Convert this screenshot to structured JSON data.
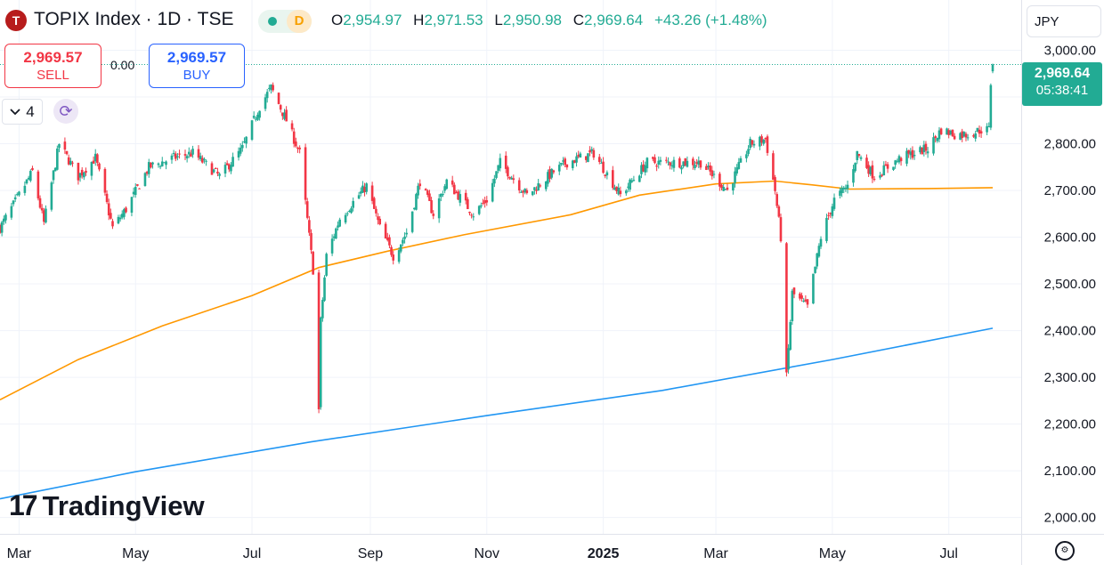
{
  "header": {
    "symbol_logo": "T",
    "title": "TOPIX Index · 1D · TSE",
    "status_badge": "D",
    "ohlc": {
      "open_label": "O",
      "open": "2,954.97",
      "high_label": "H",
      "high": "2,971.53",
      "low_label": "L",
      "low": "2,950.98",
      "close_label": "C",
      "close": "2,969.64",
      "change": "+43.26 (+1.48%)"
    }
  },
  "trade": {
    "sell_price": "2,969.57",
    "sell_label": "SELL",
    "spread": "0.00",
    "buy_price": "2,969.57",
    "buy_label": "BUY"
  },
  "indicators_toggle": {
    "count": "4",
    "chevron_icon": "chevron-down-icon"
  },
  "sync_icon": "refresh-icon",
  "currency": "JPY",
  "last_price": {
    "value": "2,969.64",
    "countdown": "05:38:41"
  },
  "watermark": {
    "logo_mark": "17",
    "wordmark": "TradingView"
  },
  "colors": {
    "up": "#22ab94",
    "down": "#f23645",
    "ma_orange": "#ff9800",
    "ma_blue": "#2196f3"
  },
  "chart_data": {
    "type": "candlestick",
    "ylim": [
      1965,
      3020
    ],
    "y_ticks": [
      2000,
      2100,
      2200,
      2300,
      2400,
      2500,
      2600,
      2700,
      2800,
      2900,
      3000
    ],
    "y_tick_labels": [
      "2,000.00",
      "2,100.00",
      "2,200.00",
      "2,300.00",
      "2,400.00",
      "2,500.00",
      "2,600.00",
      "2,700.00",
      "2,800.00",
      "2,900.00",
      "3,000.00"
    ],
    "x_tick_labels": [
      "Mar",
      "May",
      "Jul",
      "Sep",
      "Nov",
      "2025",
      "Mar",
      "May",
      "Jul"
    ],
    "x_tick_dates": [
      "2024-03-01",
      "2024-05-01",
      "2024-07-01",
      "2024-09-01",
      "2024-11-01",
      "2025-01-01",
      "2025-03-01",
      "2025-05-01",
      "2025-07-01"
    ],
    "date_range": [
      "2024-02-20",
      "2025-07-24"
    ],
    "last_close": 2969.64,
    "close_path": [
      [
        "2024-02-20",
        2620
      ],
      [
        "2024-03-01",
        2690
      ],
      [
        "2024-03-08",
        2740
      ],
      [
        "2024-03-14",
        2630
      ],
      [
        "2024-03-22",
        2800
      ],
      [
        "2024-04-01",
        2730
      ],
      [
        "2024-04-10",
        2770
      ],
      [
        "2024-04-19",
        2620
      ],
      [
        "2024-04-26",
        2660
      ],
      [
        "2024-05-08",
        2750
      ],
      [
        "2024-05-21",
        2770
      ],
      [
        "2024-05-31",
        2780
      ],
      [
        "2024-06-14",
        2730
      ],
      [
        "2024-06-26",
        2790
      ],
      [
        "2024-07-05",
        2880
      ],
      [
        "2024-07-11",
        2920
      ],
      [
        "2024-07-19",
        2850
      ],
      [
        "2024-07-26",
        2780
      ],
      [
        "2024-08-02",
        2530
      ],
      [
        "2024-08-05",
        2230
      ],
      [
        "2024-08-06",
        2420
      ],
      [
        "2024-08-09",
        2560
      ],
      [
        "2024-08-16",
        2640
      ],
      [
        "2024-08-30",
        2710
      ],
      [
        "2024-09-06",
        2620
      ],
      [
        "2024-09-13",
        2560
      ],
      [
        "2024-09-20",
        2610
      ],
      [
        "2024-09-27",
        2720
      ],
      [
        "2024-10-04",
        2650
      ],
      [
        "2024-10-11",
        2720
      ],
      [
        "2024-10-25",
        2650
      ],
      [
        "2024-11-01",
        2680
      ],
      [
        "2024-11-08",
        2760
      ],
      [
        "2024-11-22",
        2690
      ],
      [
        "2024-12-06",
        2740
      ],
      [
        "2024-12-13",
        2760
      ],
      [
        "2024-12-27",
        2780
      ],
      [
        "2025-01-10",
        2690
      ],
      [
        "2025-01-24",
        2760
      ],
      [
        "2025-02-07",
        2760
      ],
      [
        "2025-02-21",
        2760
      ],
      [
        "2025-03-07",
        2700
      ],
      [
        "2025-03-19",
        2800
      ],
      [
        "2025-03-27",
        2810
      ],
      [
        "2025-04-01",
        2700
      ],
      [
        "2025-04-04",
        2600
      ],
      [
        "2025-04-07",
        2300
      ],
      [
        "2025-04-10",
        2480
      ],
      [
        "2025-04-18",
        2450
      ],
      [
        "2025-04-25",
        2600
      ],
      [
        "2025-05-02",
        2680
      ],
      [
        "2025-05-09",
        2710
      ],
      [
        "2025-05-14",
        2780
      ],
      [
        "2025-05-23",
        2730
      ],
      [
        "2025-06-06",
        2770
      ],
      [
        "2025-06-20",
        2790
      ],
      [
        "2025-06-27",
        2830
      ],
      [
        "2025-07-04",
        2820
      ],
      [
        "2025-07-11",
        2820
      ],
      [
        "2025-07-18",
        2830
      ],
      [
        "2025-07-22",
        2830
      ],
      [
        "2025-07-23",
        2930
      ],
      [
        "2025-07-24",
        2969.64
      ]
    ],
    "series": [
      {
        "name": "",
        "type": "moving-average",
        "color": "#ff9800",
        "points": [
          [
            "2024-02-20",
            2252
          ],
          [
            "2024-04-01",
            2338
          ],
          [
            "2024-05-15",
            2410
          ],
          [
            "2024-07-01",
            2475
          ],
          [
            "2024-08-05",
            2535
          ],
          [
            "2024-09-10",
            2570
          ],
          [
            "2024-10-20",
            2605
          ],
          [
            "2024-12-15",
            2648
          ],
          [
            "2025-01-20",
            2690
          ],
          [
            "2025-03-01",
            2714
          ],
          [
            "2025-04-01",
            2720
          ],
          [
            "2025-04-20",
            2712
          ],
          [
            "2025-05-10",
            2703
          ],
          [
            "2025-06-20",
            2704
          ],
          [
            "2025-07-24",
            2706
          ]
        ]
      },
      {
        "name": "",
        "type": "moving-average",
        "color": "#2196f3",
        "points": [
          [
            "2024-02-20",
            2040
          ],
          [
            "2024-05-01",
            2098
          ],
          [
            "2024-08-01",
            2162
          ],
          [
            "2024-11-01",
            2218
          ],
          [
            "2025-02-01",
            2272
          ],
          [
            "2025-05-01",
            2338
          ],
          [
            "2025-07-24",
            2405
          ]
        ]
      }
    ]
  }
}
